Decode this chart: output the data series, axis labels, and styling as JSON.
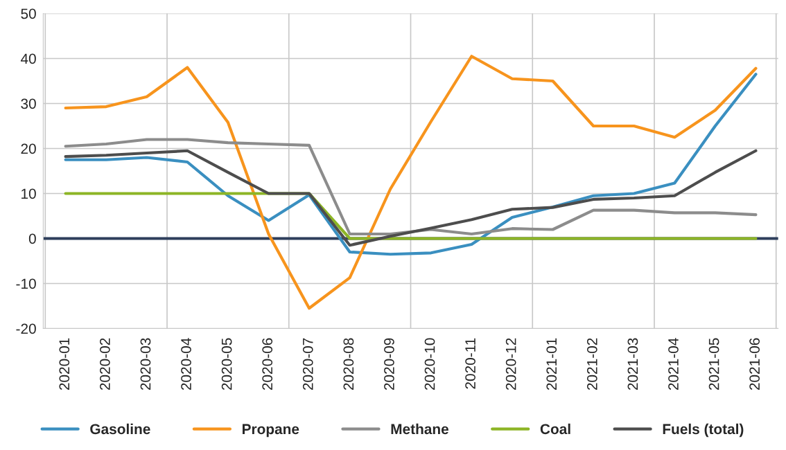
{
  "chart_data": {
    "type": "line",
    "categories": [
      "2020-01",
      "2020-02",
      "2020-03",
      "2020-04",
      "2020-05",
      "2020-06",
      "2020-07",
      "2020-08",
      "2020-09",
      "2020-10",
      "2020-11",
      "2020-12",
      "2021-01",
      "2021-02",
      "2021-03",
      "2021-04",
      "2021-05",
      "2021-06"
    ],
    "series": [
      {
        "name": "Gasoline",
        "color": "#3a8fc0",
        "values": [
          17.5,
          17.5,
          18,
          17,
          9.5,
          4,
          9.7,
          -3,
          -3.5,
          -3.2,
          -1.3,
          4.7,
          7,
          9.5,
          10,
          12.3,
          25,
          36.5
        ]
      },
      {
        "name": "Propane",
        "color": "#f7941d",
        "values": [
          29,
          29.3,
          31.5,
          38,
          25.8,
          1,
          -15.5,
          -8.7,
          11,
          26,
          40.5,
          35.5,
          35,
          25,
          25,
          22.5,
          28.5,
          37.8
        ]
      },
      {
        "name": "Methane",
        "color": "#8c8c8c",
        "values": [
          20.5,
          21,
          22,
          22,
          21.3,
          21,
          20.7,
          1,
          1,
          2,
          1,
          2.2,
          2,
          6.3,
          6.3,
          5.7,
          5.7,
          5.3
        ]
      },
      {
        "name": "Coal",
        "color": "#8db526",
        "values": [
          10,
          10,
          10,
          10,
          10,
          10,
          10,
          0,
          0,
          0,
          0,
          0,
          0,
          0,
          0,
          0,
          0,
          0
        ]
      },
      {
        "name": "Fuels (total)",
        "color": "#4d4d4d",
        "values": [
          18.2,
          18.5,
          19,
          19.5,
          14.7,
          10,
          10,
          -1.5,
          0.5,
          2.3,
          4.2,
          6.5,
          6.9,
          8.7,
          9,
          9.5,
          14.7,
          19.5
        ]
      }
    ],
    "ylim": [
      -20,
      50
    ],
    "yticks": [
      -20,
      -10,
      0,
      10,
      20,
      30,
      40,
      50
    ],
    "ref_lines": [
      {
        "axis": "y",
        "value": 0,
        "color": "#2e3f5c"
      }
    ],
    "grid": true,
    "legend": "bottom",
    "marker": "none",
    "line_style": "solid"
  }
}
